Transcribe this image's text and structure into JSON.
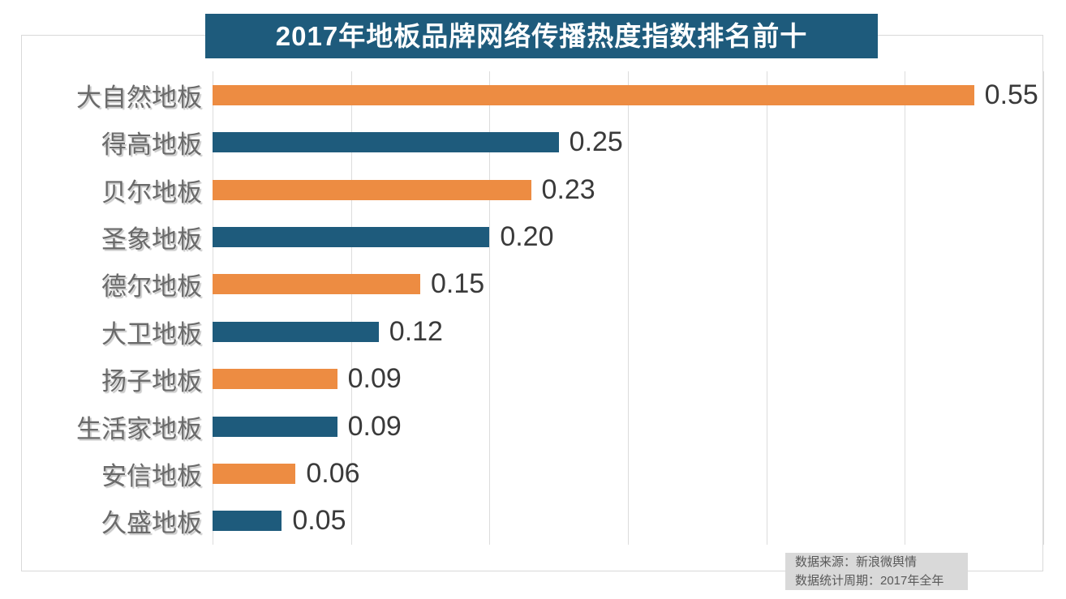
{
  "title": "2017年地板品牌网络传播热度指数排名前十",
  "source": {
    "line1": "数据来源：新浪微舆情",
    "line2": "数据统计周期：2017年全年"
  },
  "colors": {
    "orange": "#ED8C42",
    "teal": "#1E5B7C",
    "grid": "#DCDCDC",
    "frame": "#D9D9D9",
    "label": "#6A6A6A",
    "label_shadow": "#C9C9C9",
    "value": "#3A3A3A",
    "title_bg": "#1E5B7C",
    "title_text": "#FFFFFF",
    "source_bg": "#D9D9D9",
    "source_text": "#595959"
  },
  "chart_data": {
    "type": "bar",
    "orientation": "horizontal",
    "title": "2017年地板品牌网络传播热度指数排名前十",
    "categories": [
      "大自然地板",
      "得高地板",
      "贝尔地板",
      "圣象地板",
      "德尔地板",
      "大卫地板",
      "扬子地板",
      "生活家地板",
      "安信地板",
      "久盛地板"
    ],
    "values": [
      0.55,
      0.25,
      0.23,
      0.2,
      0.15,
      0.12,
      0.09,
      0.09,
      0.06,
      0.05
    ],
    "value_labels": [
      "0.55",
      "0.25",
      "0.23",
      "0.20",
      "0.15",
      "0.12",
      "0.09",
      "0.09",
      "0.06",
      "0.05"
    ],
    "bar_colors_alternate": [
      "#ED8C42",
      "#1E5B7C"
    ],
    "xlim": [
      0,
      0.6
    ],
    "grid_step": 0.1,
    "grid": "vertical-only",
    "x_tick_labels": "none",
    "legend": "none",
    "value_label_position": "right-of-bar"
  }
}
